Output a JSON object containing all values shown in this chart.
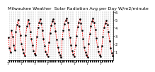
{
  "title": "Milwaukee Weather  Solar Radiation Avg per Day W/m2/minute",
  "line_color": "#ff0000",
  "marker_color": "#000000",
  "bg_color": "#ffffff",
  "grid_color": "#b0b0b0",
  "ylim": [
    0,
    620
  ],
  "yticks": [
    100,
    200,
    300,
    400,
    500,
    600
  ],
  "ytick_labels": [
    "1",
    "2",
    "3",
    "4",
    "5",
    "6"
  ],
  "title_fontsize": 4.5,
  "tick_fontsize": 3.5,
  "values": [
    280,
    150,
    95,
    370,
    290,
    180,
    120,
    350,
    440,
    500,
    420,
    310,
    200,
    130,
    85,
    50,
    310,
    420,
    500,
    460,
    350,
    260,
    180,
    110,
    75,
    55,
    290,
    400,
    470,
    510,
    460,
    370,
    260,
    170,
    100,
    65,
    40,
    220,
    330,
    430,
    480,
    510,
    460,
    360,
    250,
    160,
    95,
    60,
    35,
    260,
    370,
    450,
    490,
    520,
    470,
    380,
    280,
    180,
    110,
    70,
    45,
    180,
    300,
    410,
    470,
    510,
    460,
    370,
    260,
    160,
    90,
    55,
    30,
    200,
    320,
    420,
    480,
    515,
    465,
    375,
    270,
    165,
    100,
    60,
    38,
    170,
    290,
    400,
    460,
    490,
    440,
    350,
    240,
    150,
    85,
    50
  ],
  "num_points": 96
}
